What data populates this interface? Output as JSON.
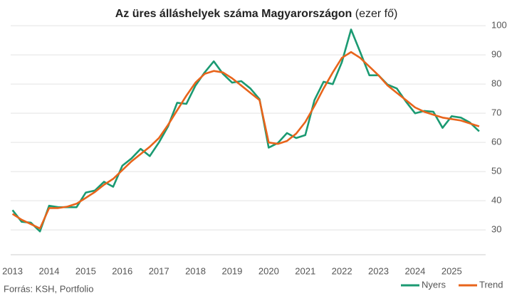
{
  "chart_data": {
    "type": "line",
    "title": "Az üres álláshelyek száma Magyarországon",
    "subtitle": "(ezer fő)",
    "source": "Forrás: KSH, Portfolio",
    "x": [
      2013,
      2013.25,
      2013.5,
      2013.75,
      2014,
      2014.25,
      2014.5,
      2014.75,
      2015,
      2015.25,
      2015.5,
      2015.75,
      2016,
      2016.25,
      2016.5,
      2016.75,
      2017,
      2017.25,
      2017.5,
      2017.75,
      2018,
      2018.25,
      2018.5,
      2018.75,
      2019,
      2019.25,
      2019.5,
      2019.75,
      2020,
      2020.25,
      2020.5,
      2020.75,
      2021,
      2021.25,
      2021.5,
      2021.75,
      2022,
      2022.25,
      2022.5,
      2022.75,
      2023,
      2023.25,
      2023.5,
      2023.75,
      2024,
      2024.25,
      2024.5,
      2024.75,
      2025,
      2025.25,
      2025.5,
      2025.75
    ],
    "series": [
      {
        "name": "Nyers",
        "color": "#1b9a72",
        "values": [
          36.8,
          32.8,
          32.5,
          29.5,
          38.3,
          37.8,
          37.8,
          37.8,
          42.8,
          43.5,
          46.5,
          44.8,
          52,
          54.5,
          57.8,
          55.3,
          60,
          65.5,
          73.6,
          73.2,
          79.5,
          84,
          87.8,
          83.5,
          80.5,
          81,
          78.5,
          74.8,
          58.2,
          59.8,
          63.2,
          61.5,
          62.5,
          74.5,
          80.8,
          80,
          87.5,
          98.7,
          91,
          83,
          83,
          79.8,
          78.5,
          74,
          70,
          70.8,
          70.5,
          65,
          69,
          68.5,
          66.8,
          63.8
        ]
      },
      {
        "name": "Trend",
        "color": "#e8641b",
        "values": [
          35.5,
          33.5,
          32,
          30.5,
          37.5,
          37.5,
          38,
          39,
          41,
          43,
          45.5,
          47.5,
          50.5,
          53.5,
          56,
          58.5,
          61.5,
          66,
          71,
          76,
          80.5,
          83.5,
          84.5,
          84,
          82,
          79.5,
          77,
          74.5,
          60,
          59.5,
          60.5,
          63,
          67,
          72.5,
          78.5,
          84,
          89,
          91,
          89,
          86,
          83,
          79.5,
          77,
          74.5,
          72,
          70.5,
          69.5,
          68.5,
          68,
          67.5,
          66.5,
          65.5
        ]
      }
    ],
    "xlim": [
      2012.95,
      2025.85
    ],
    "xticks": [
      2013,
      2014,
      2015,
      2016,
      2017,
      2018,
      2019,
      2020,
      2021,
      2022,
      2023,
      2024,
      2025
    ],
    "ylim": [
      21.5,
      101.5
    ],
    "yticks": [
      30,
      40,
      50,
      60,
      70,
      80,
      90,
      100
    ],
    "grid": true,
    "legend": "bottom-right"
  }
}
